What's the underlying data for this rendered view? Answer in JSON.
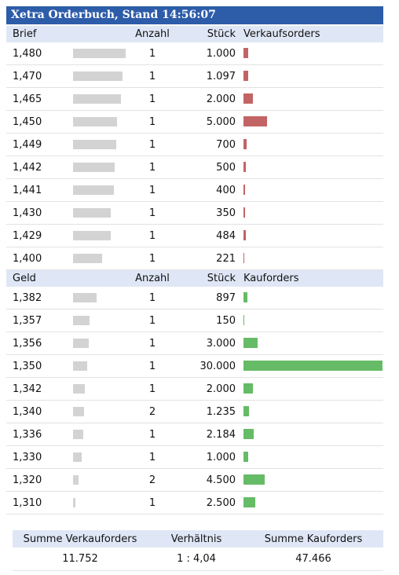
{
  "title": "Xetra Orderbuch, Stand 14:56:07",
  "sell": {
    "header": [
      "Brief",
      "Anzahl",
      "Stück",
      "Verkaufsorders"
    ],
    "rows": [
      [
        "1,480",
        "1",
        "1.000"
      ],
      [
        "1,470",
        "1",
        "1.097"
      ],
      [
        "1,465",
        "1",
        "2.000"
      ],
      [
        "1,450",
        "1",
        "5.000"
      ],
      [
        "1,449",
        "1",
        "700"
      ],
      [
        "1,442",
        "1",
        "500"
      ],
      [
        "1,441",
        "1",
        "400"
      ],
      [
        "1,430",
        "1",
        "350"
      ],
      [
        "1,429",
        "1",
        "484"
      ],
      [
        "1,400",
        "1",
        "221"
      ]
    ]
  },
  "buy": {
    "header": [
      "Geld",
      "Anzahl",
      "Stück",
      "Kauforders"
    ],
    "rows": [
      [
        "1,382",
        "1",
        "897"
      ],
      [
        "1,357",
        "1",
        "150"
      ],
      [
        "1,356",
        "1",
        "3.000"
      ],
      [
        "1,350",
        "1",
        "30.000"
      ],
      [
        "1,342",
        "1",
        "2.000"
      ],
      [
        "1,340",
        "2",
        "1.235"
      ],
      [
        "1,336",
        "1",
        "2.184"
      ],
      [
        "1,330",
        "1",
        "1.000"
      ],
      [
        "1,320",
        "2",
        "4.500"
      ],
      [
        "1,310",
        "1",
        "2.500"
      ]
    ]
  },
  "summary": {
    "header": [
      "Summe Verkauforders",
      "Verhältnis",
      "Summe Kauforders"
    ],
    "values": [
      "11.752",
      "1 : 4,04",
      "47.466"
    ]
  }
}
